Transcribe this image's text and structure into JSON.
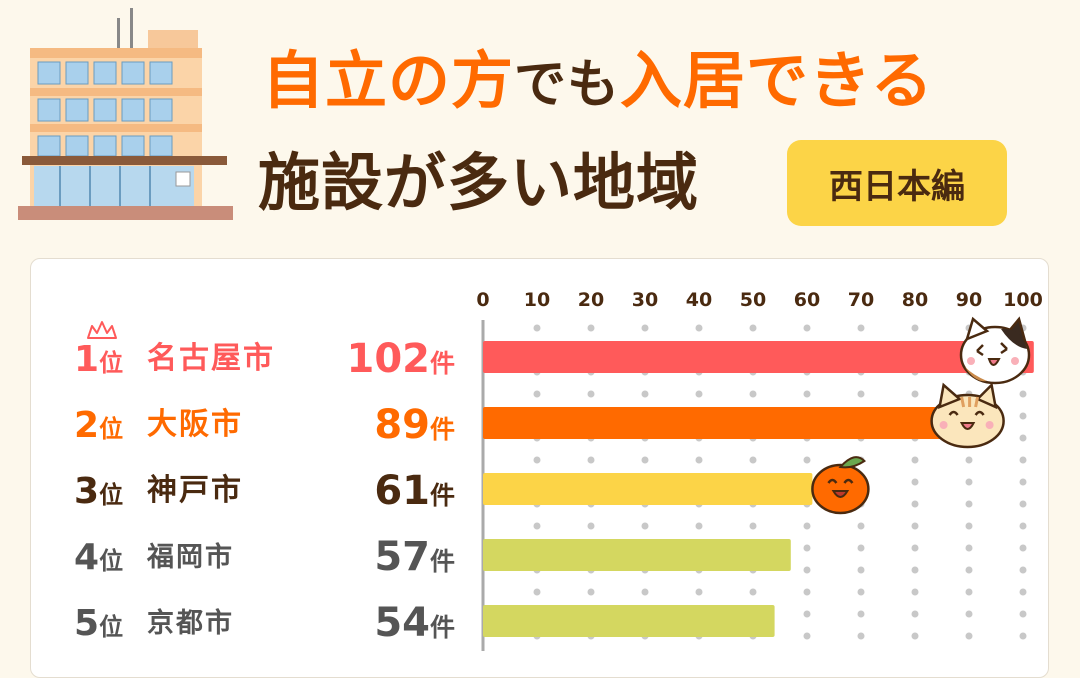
{
  "header": {
    "title_line1": [
      {
        "text": "自立の方",
        "accent": true
      },
      {
        "text": "でも",
        "accent": false
      },
      {
        "text": "入居できる",
        "accent": true
      }
    ],
    "title_line2": "施設が多い地域",
    "badge": "西日本編"
  },
  "colors": {
    "accent": "#ff6a00",
    "text_dark": "#4a2a10",
    "rank1": "#ff5a5a",
    "rank2": "#ff6a00",
    "rank3": "#fcd447",
    "rank_other": "#d4d760",
    "axis": "#aaaaaa",
    "dots": "#c8c8c8"
  },
  "icons": [
    "building-icon",
    "crown-icon",
    "calico-cat-icon",
    "tabby-cat-icon",
    "mikan-orange-icon"
  ],
  "chart_data": {
    "type": "bar",
    "orientation": "horizontal",
    "title": "",
    "xlabel": "",
    "ylabel": "",
    "xlim": [
      0,
      100
    ],
    "xticks": [
      0,
      10,
      20,
      30,
      40,
      50,
      60,
      70,
      80,
      90,
      100
    ],
    "tick_position": "top",
    "grid": "dotted-vertical",
    "unit": "件",
    "rank_suffix": "位",
    "rows": [
      {
        "rank": 1,
        "city": "名古屋市",
        "value": 102,
        "color": "#ff5a5a",
        "label_color": "#ff5a5a",
        "marker": "calico-cat-icon",
        "crown": true
      },
      {
        "rank": 2,
        "city": "大阪市",
        "value": 89,
        "color": "#ff6a00",
        "label_color": "#ff6a00",
        "marker": "tabby-cat-icon",
        "crown": false
      },
      {
        "rank": 3,
        "city": "神戸市",
        "value": 61,
        "color": "#fcd447",
        "label_color": "#4a2a10",
        "marker": "mikan-orange-icon",
        "crown": false
      },
      {
        "rank": 4,
        "city": "福岡市",
        "value": 57,
        "color": "#d4d760",
        "label_color": "#555555",
        "marker": "",
        "crown": false
      },
      {
        "rank": 5,
        "city": "京都市",
        "value": 54,
        "color": "#d4d760",
        "label_color": "#555555",
        "marker": "",
        "crown": false
      }
    ]
  }
}
